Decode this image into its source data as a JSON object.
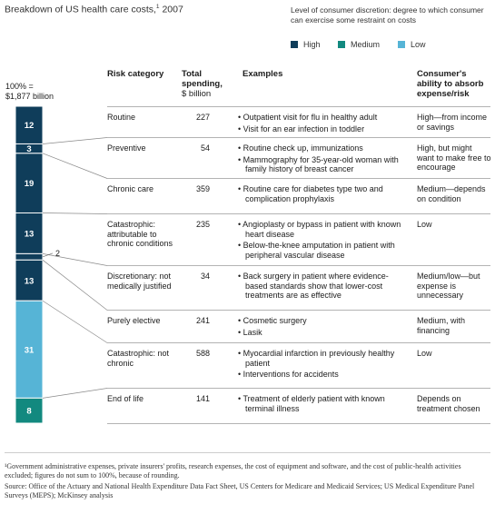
{
  "title": "Breakdown of US health care costs,",
  "title_sup": "1",
  "title_year": " 2007",
  "legend": {
    "title": "Level of consumer discretion: degree to which consumer can exercise some restraint on costs",
    "items": [
      {
        "label": "High",
        "color": "#0f3d5a"
      },
      {
        "label": "Medium",
        "color": "#12897f"
      },
      {
        "label": "Low",
        "color": "#56b4d6"
      }
    ]
  },
  "total_label_line1": "100% =",
  "total_label_line2": "$1,877 billion",
  "headers": {
    "risk": "Risk category",
    "total_line1": "Total",
    "total_line2": "spending,",
    "total_unit": "$ billion",
    "examples": "Examples",
    "ability_line1": "Consumer's",
    "ability_line2": "ability to absorb",
    "ability_line3": "expense/risk"
  },
  "rows": [
    {
      "category": "Routine",
      "spending": "227",
      "examples": [
        "Outpatient visit for flu in healthy adult",
        "Visit for an ear infection in toddler"
      ],
      "ability": "High—from income or savings"
    },
    {
      "category": "Preventive",
      "spending": "54",
      "examples": [
        "Routine check up, immunizations",
        "Mammography for 35-year-old woman with family history of breast cancer"
      ],
      "ability": "High, but might want to make free to encourage"
    },
    {
      "category": "Chronic care",
      "spending": "359",
      "examples": [
        "Routine care for diabetes type two and complication prophylaxis"
      ],
      "ability": "Medium—depends on condition"
    },
    {
      "category": "Catastrophic: attributable to chronic conditions",
      "spending": "235",
      "examples": [
        "Angioplasty or bypass in patient with known heart disease",
        "Below-the-knee amputation in patient with peripheral vascular disease"
      ],
      "ability": "Low"
    },
    {
      "category": "Discretionary: not medically justified",
      "spending": "34",
      "examples": [
        "Back surgery in patient where evidence-based standards show that lower-cost treatments are as effective"
      ],
      "ability": "Medium/low—but expense is unnecessary"
    },
    {
      "category": "Purely elective",
      "spending": "241",
      "examples": [
        "Cosmetic surgery",
        "Lasik"
      ],
      "ability": "Medium, with financing"
    },
    {
      "category": "Catastrophic: not chronic",
      "spending": "588",
      "examples": [
        "Myocardial infarction in previously healthy patient",
        "Interventions for accidents"
      ],
      "ability": "Low"
    },
    {
      "category": "End of life",
      "spending": "141",
      "examples": [
        "Treatment of elderly patient with known terminal illness"
      ],
      "ability": "Depends on treatment chosen"
    }
  ],
  "chart_data": {
    "type": "bar",
    "stacked": true,
    "orientation": "vertical",
    "total": "100% = $1,877 billion",
    "unit": "% of total spending",
    "categories": [
      "Routine",
      "Preventive",
      "Chronic care",
      "Catastrophic: attributable to chronic conditions",
      "Discretionary: not medically justified",
      "Purely elective",
      "Catastrophic: not chronic",
      "End of life"
    ],
    "values": [
      12,
      3,
      19,
      13,
      2,
      13,
      31,
      8
    ],
    "labels": [
      "12",
      "3",
      "19",
      "13",
      "2",
      "13",
      "31",
      "8"
    ],
    "discretion_level": [
      "High",
      "High",
      "High",
      "High",
      "High",
      "High",
      "Low",
      "Medium"
    ]
  },
  "footnotes": [
    "¹Government administrative expenses, private insurers' profits, research expenses, the cost of equipment and software, and the cost of public-health activities excluded; figures do not sum to 100%, because of rounding.",
    "Source: Office of the Actuary and National Health Expenditure Data Fact Sheet, US Centers for Medicare and Medicaid Services; US Medical Expenditure Panel Surveys (MEPS); McKinsey analysis"
  ]
}
